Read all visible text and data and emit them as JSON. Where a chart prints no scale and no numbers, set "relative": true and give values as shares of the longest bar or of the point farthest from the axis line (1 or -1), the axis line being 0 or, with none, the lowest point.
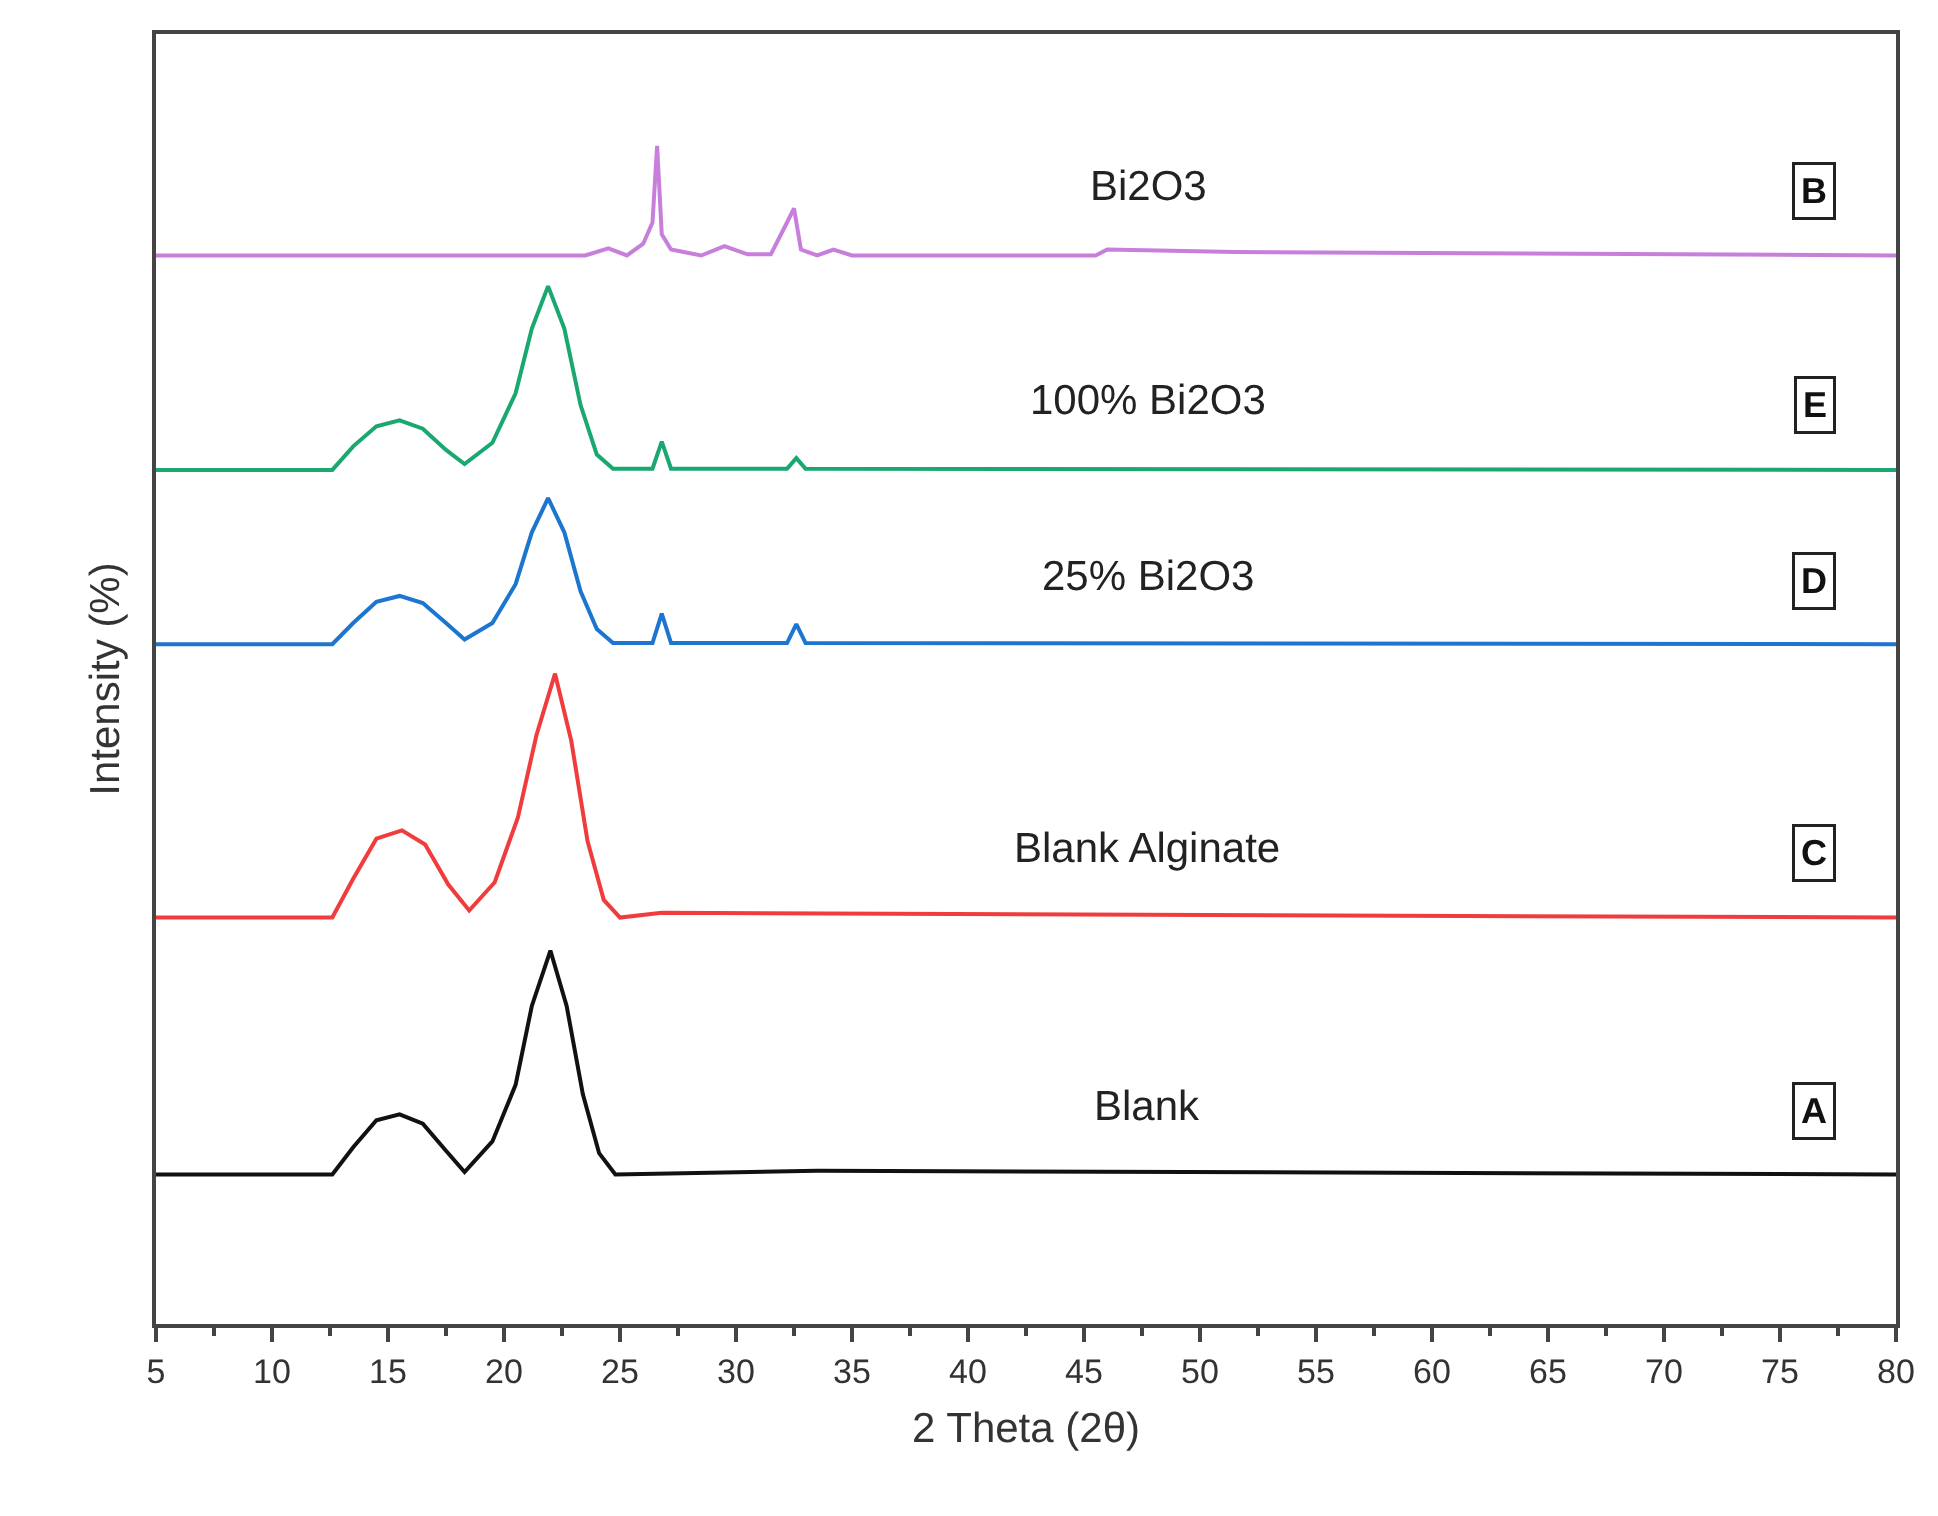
{
  "chart_data": {
    "type": "line",
    "relative": true,
    "xlabel": "2 Theta (2θ)",
    "ylabel": "Intensity (%)",
    "xlim": [
      5,
      80
    ],
    "xticks": [
      5,
      10,
      15,
      20,
      25,
      30,
      35,
      40,
      45,
      50,
      55,
      60,
      65,
      70,
      75,
      80
    ],
    "legend": false,
    "marker": "none",
    "line_style": "solid",
    "series": [
      {
        "name": "Bi2O3",
        "color": "#c77fdb",
        "x": [
          5,
          23.5,
          24.5,
          25.3,
          26.0,
          26.4,
          26.6,
          26.8,
          27.2,
          28.5,
          29.5,
          30.5,
          31.5,
          32.2,
          32.5,
          32.8,
          33.5,
          34.2,
          35,
          45.5,
          46,
          51.5,
          80
        ],
        "values": [
          0.907,
          0.907,
          0.913,
          0.907,
          0.917,
          0.935,
          1.0,
          0.925,
          0.912,
          0.907,
          0.915,
          0.908,
          0.908,
          0.935,
          0.947,
          0.912,
          0.907,
          0.912,
          0.907,
          0.907,
          0.912,
          0.91,
          0.907
        ]
      },
      {
        "name": "100% Bi2O3",
        "color": "#1aa870",
        "x": [
          5,
          12.6,
          13.5,
          14.5,
          15.5,
          16.5,
          17.5,
          18.3,
          19.5,
          20.5,
          21.2,
          21.9,
          22.6,
          23.3,
          24.0,
          24.7,
          26.4,
          26.8,
          27.2,
          32.2,
          32.6,
          33.0,
          80
        ],
        "values": [
          0.725,
          0.725,
          0.745,
          0.762,
          0.767,
          0.76,
          0.742,
          0.73,
          0.748,
          0.79,
          0.845,
          0.881,
          0.845,
          0.78,
          0.738,
          0.726,
          0.726,
          0.749,
          0.726,
          0.726,
          0.735,
          0.726,
          0.725
        ]
      },
      {
        "name": "25% Bi2O3",
        "color": "#1c75cf",
        "x": [
          5,
          12.6,
          13.5,
          14.5,
          15.5,
          16.5,
          17.5,
          18.3,
          19.5,
          20.5,
          21.2,
          21.9,
          22.6,
          23.3,
          24.0,
          24.7,
          26.4,
          26.8,
          27.2,
          32.2,
          32.6,
          33.0,
          80
        ],
        "values": [
          0.577,
          0.577,
          0.595,
          0.613,
          0.618,
          0.612,
          0.595,
          0.581,
          0.595,
          0.628,
          0.672,
          0.701,
          0.672,
          0.622,
          0.59,
          0.578,
          0.578,
          0.603,
          0.578,
          0.578,
          0.594,
          0.578,
          0.577
        ]
      },
      {
        "name": "Blank Alginate",
        "color": "#f03c3c",
        "x": [
          5,
          12.6,
          13.5,
          14.5,
          15.6,
          16.6,
          17.6,
          18.5,
          19.6,
          20.6,
          21.4,
          22.2,
          22.9,
          23.6,
          24.3,
          25.0,
          26.8,
          80
        ],
        "values": [
          0.345,
          0.345,
          0.378,
          0.412,
          0.419,
          0.407,
          0.373,
          0.351,
          0.375,
          0.43,
          0.5,
          0.552,
          0.495,
          0.41,
          0.36,
          0.345,
          0.349,
          0.345
        ]
      },
      {
        "name": "Blank",
        "color": "#111111",
        "x": [
          5,
          12.6,
          13.5,
          14.5,
          15.5,
          16.5,
          17.5,
          18.3,
          19.5,
          20.5,
          21.2,
          22.0,
          22.7,
          23.4,
          24.1,
          24.8,
          33.5,
          80
        ],
        "values": [
          0.127,
          0.127,
          0.15,
          0.173,
          0.178,
          0.17,
          0.147,
          0.129,
          0.155,
          0.203,
          0.27,
          0.317,
          0.27,
          0.195,
          0.145,
          0.127,
          0.13,
          0.127
        ]
      }
    ],
    "annotations": [
      "B",
      "E",
      "D",
      "C",
      "A"
    ]
  }
}
